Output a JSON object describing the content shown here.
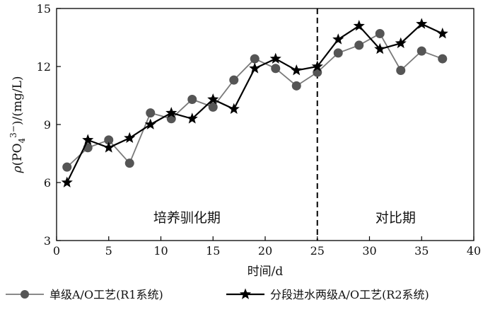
{
  "chart_data": {
    "type": "line",
    "xlabel": "时间/d",
    "ylabel_parts": {
      "rho": "ρ",
      "open": "(PO",
      "sub": "4",
      "sup": "3−",
      "close": ")/(mg/L)"
    },
    "xlim": [
      0,
      40
    ],
    "ylim": [
      3,
      15
    ],
    "x_ticks": [
      0,
      5,
      10,
      15,
      20,
      25,
      30,
      35,
      40
    ],
    "y_ticks": [
      3,
      6,
      9,
      12,
      15
    ],
    "grid": false,
    "legend_position": "bottom",
    "divider": {
      "x": 25,
      "style": "dashed"
    },
    "annotations": [
      {
        "text": "培养驯化期",
        "x": 12.5,
        "y": 4.2
      },
      {
        "text": "对比期",
        "x": 32.5,
        "y": 4.2
      }
    ],
    "series": [
      {
        "name": "单级A/O工艺(R1系统)",
        "marker": "circle",
        "line_color": "#7a7a7a",
        "marker_color": "#555555",
        "x": [
          1,
          3,
          5,
          7,
          9,
          11,
          13,
          15,
          17,
          19,
          21,
          23,
          25,
          27,
          29,
          31,
          33,
          35,
          37
        ],
        "y": [
          6.8,
          7.8,
          8.2,
          7.0,
          9.6,
          9.3,
          10.3,
          9.9,
          11.3,
          12.4,
          11.9,
          11.0,
          11.7,
          12.7,
          13.1,
          13.7,
          11.8,
          12.8,
          12.4
        ]
      },
      {
        "name": "分段进水两级A/O工艺(R2系统)",
        "marker": "star",
        "line_color": "#000000",
        "marker_color": "#000000",
        "x": [
          1,
          3,
          5,
          7,
          9,
          11,
          13,
          15,
          17,
          19,
          21,
          23,
          25,
          27,
          29,
          31,
          33,
          35,
          37
        ],
        "y": [
          6.0,
          8.2,
          7.8,
          8.3,
          9.0,
          9.6,
          9.3,
          10.3,
          9.8,
          11.9,
          12.4,
          11.8,
          12.0,
          13.4,
          14.1,
          12.9,
          13.2,
          14.2,
          13.7
        ]
      }
    ]
  }
}
